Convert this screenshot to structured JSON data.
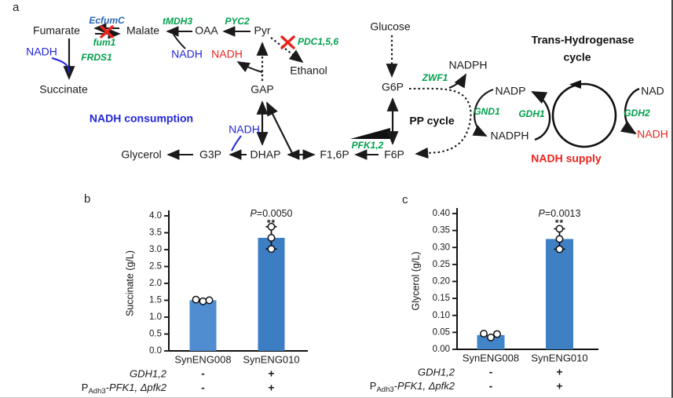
{
  "figure": {
    "panel_a_label": "a",
    "panel_b_label": "b",
    "panel_c_label": "c"
  },
  "pathway": {
    "section_titles": {
      "nadh_consumption": "NADH consumption",
      "nadh_supply": "NADH supply",
      "trans_line1": "Trans-Hydrogenase",
      "trans_line2": "cycle",
      "pp_cycle": "PP cycle"
    },
    "metabolites": {
      "fumarate": "Fumarate",
      "malate": "Malate",
      "oaa": "OAA",
      "pyr": "Pyr",
      "ethanol": "Ethanol",
      "succinate": "Succinate",
      "gap": "GAP",
      "glycerol": "Glycerol",
      "g3p": "G3P",
      "dhap": "DHAP",
      "f16p": "F1,6P",
      "f6p": "F6P",
      "glucose": "Glucose",
      "g6p": "G6P",
      "nadph": "NADPH",
      "nadp": "NADP",
      "nad": "NAD",
      "nadh": "NADH"
    },
    "genes": {
      "ecfumc": "EcfumC",
      "fum1": "fum1",
      "tmdh3": "tMDH3",
      "pyc2": "PYC2",
      "pdc": "PDC1,5,6",
      "frds1": "FRDS1",
      "pfk": "PFK1,2",
      "zwf1": "ZWF1",
      "gnd1": "GND1",
      "gdh1": "GDH1",
      "gdh2": "GDH2"
    }
  },
  "colors": {
    "gene_green": "#00a04d",
    "nadh_blue": "#2226d8",
    "nadh_red": "#e8251d",
    "ecfumc_blue": "#2a66b8"
  },
  "chart_data": [
    {
      "type": "bar",
      "panel": "b",
      "ylabel": "Succinate (g/L)",
      "ylim": [
        0,
        4.0
      ],
      "ytick_labels": [
        "4.0",
        "3.5",
        "3.0",
        "2.5",
        "2.0",
        "1.5",
        "1.0",
        "0.5",
        "0.0"
      ],
      "categories": [
        "SynENG008",
        "SynENG010"
      ],
      "values": [
        1.5,
        3.35
      ],
      "bar_colors": [
        "#4f8cd0",
        "#3c7dc4"
      ],
      "points": [
        [
          1.52,
          1.47,
          1.5
        ],
        [
          3.68,
          3.35,
          3.02
        ]
      ],
      "error_bars": [
        null,
        [
          3.02,
          3.68
        ]
      ],
      "p_value_label": "P=0.0050",
      "significance": "**",
      "condition_rows": [
        {
          "label_italic": "GDH1,2",
          "values": [
            "-",
            "+"
          ]
        },
        {
          "label_pre": "P",
          "label_sub": "Adh3",
          "label_post": "-PFK1, Δpfk2",
          "values": [
            "-",
            "+"
          ]
        }
      ]
    },
    {
      "type": "bar",
      "panel": "c",
      "ylabel": "Glycerol (g/L)",
      "ylim": [
        0,
        0.4
      ],
      "ytick_labels": [
        "0.40",
        "0.35",
        "0.30",
        "0.25",
        "0.20",
        "0.15",
        "0.10",
        "0.05",
        "0.00"
      ],
      "categories": [
        "SynENG008",
        "SynENG010"
      ],
      "values": [
        0.042,
        0.325
      ],
      "bar_colors": [
        "#4284c8",
        "#3f80c5"
      ],
      "points": [
        [
          0.046,
          0.035,
          0.045
        ],
        [
          0.355,
          0.325,
          0.295
        ]
      ],
      "error_bars": [
        null,
        [
          0.295,
          0.355
        ]
      ],
      "p_value_label": "P=0.0013",
      "significance": "**",
      "condition_rows": [
        {
          "label_italic": "GDH1,2",
          "values": [
            "-",
            "+"
          ]
        },
        {
          "label_pre": "P",
          "label_sub": "Adh3",
          "label_post": "-PFK1, Δpfk2",
          "values": [
            "-",
            "+"
          ]
        }
      ]
    }
  ]
}
